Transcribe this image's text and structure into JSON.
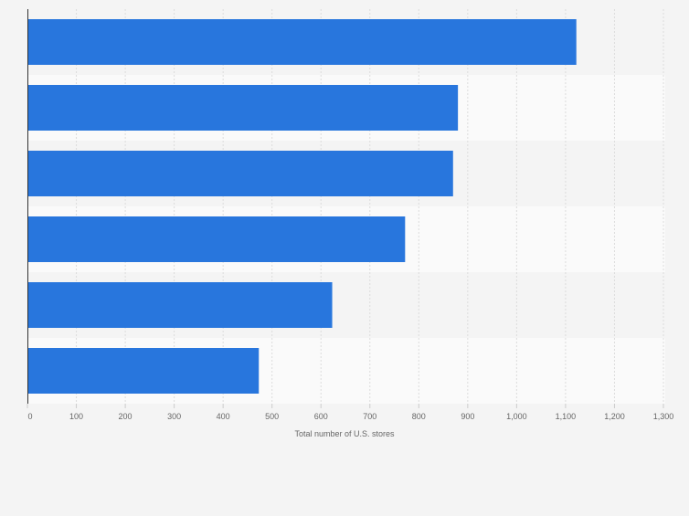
{
  "chart_data": {
    "type": "bar",
    "orientation": "horizontal",
    "title": "",
    "categories": [
      "",
      "",
      "",
      "",
      "",
      ""
    ],
    "values": [
      1122,
      880,
      870,
      772,
      623,
      473
    ],
    "xlabel": "Total number of U.S. stores",
    "ylabel": "",
    "xlim": [
      0,
      1300
    ],
    "xticks": [
      0,
      100,
      200,
      300,
      400,
      500,
      600,
      700,
      800,
      900,
      1000,
      1100,
      1200,
      1300
    ],
    "xtick_labels": [
      "0",
      "100",
      "200",
      "300",
      "400",
      "500",
      "600",
      "700",
      "800",
      "900",
      "1,000",
      "1,100",
      "1,200",
      "1,300"
    ],
    "grid": true,
    "legend": "none",
    "colors": {
      "bar": "#2876dd",
      "band_light": "#fafafa",
      "band_dark": "#f4f4f4",
      "grid": "#dcdcdc",
      "axis": "#333333",
      "tick_text": "#666666"
    }
  }
}
